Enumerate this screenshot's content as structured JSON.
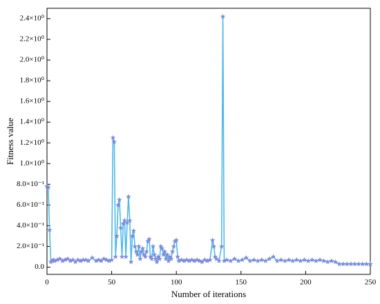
{
  "chart_data": {
    "type": "line",
    "xlabel": "Number of iterations",
    "ylabel": "Fitness value",
    "x": [
      0,
      1,
      2,
      3,
      4,
      5,
      6,
      8,
      10,
      12,
      14,
      16,
      18,
      20,
      22,
      24,
      26,
      28,
      30,
      32,
      35,
      38,
      40,
      42,
      44,
      46,
      48,
      50,
      51,
      52,
      53,
      54,
      55,
      56,
      57,
      58,
      59,
      60,
      61,
      62,
      63,
      64,
      65,
      66,
      67,
      68,
      69,
      70,
      71,
      72,
      73,
      74,
      75,
      76,
      77,
      78,
      79,
      80,
      81,
      82,
      83,
      84,
      85,
      86,
      87,
      88,
      89,
      90,
      91,
      92,
      93,
      94,
      95,
      96,
      97,
      98,
      99,
      100,
      101,
      102,
      104,
      106,
      108,
      110,
      112,
      114,
      116,
      118,
      120,
      122,
      124,
      126,
      128,
      129,
      130,
      131,
      133,
      135,
      136,
      137,
      139,
      142,
      145,
      148,
      151,
      154,
      157,
      160,
      163,
      166,
      169,
      172,
      175,
      178,
      181,
      184,
      187,
      190,
      193,
      196,
      199,
      202,
      205,
      208,
      211,
      214,
      217,
      220,
      223,
      226,
      229,
      232,
      235,
      238,
      241,
      244,
      247,
      250
    ],
    "series": [
      {
        "color": "#4fb8ea",
        "marker_color": "#7f8ad6",
        "values": [
          0.78,
          0.77,
          0.36,
          0.05,
          0.06,
          0.07,
          0.06,
          0.07,
          0.08,
          0.06,
          0.07,
          0.08,
          0.06,
          0.07,
          0.05,
          0.07,
          0.06,
          0.07,
          0.07,
          0.06,
          0.09,
          0.06,
          0.07,
          0.06,
          0.08,
          0.07,
          0.06,
          0.07,
          1.25,
          1.21,
          0.1,
          0.3,
          0.6,
          0.65,
          0.38,
          0.1,
          0.42,
          0.45,
          0.1,
          0.43,
          0.68,
          0.45,
          0.05,
          0.3,
          0.35,
          0.2,
          0.15,
          0.12,
          0.2,
          0.08,
          0.15,
          0.18,
          0.12,
          0.1,
          0.15,
          0.25,
          0.27,
          0.1,
          0.08,
          0.2,
          0.12,
          0.08,
          0.05,
          0.1,
          0.08,
          0.2,
          0.18,
          0.12,
          0.15,
          0.08,
          0.12,
          0.06,
          0.1,
          0.08,
          0.15,
          0.2,
          0.25,
          0.26,
          0.1,
          0.06,
          0.07,
          0.06,
          0.07,
          0.06,
          0.07,
          0.06,
          0.07,
          0.06,
          0.05,
          0.07,
          0.06,
          0.07,
          0.26,
          0.2,
          0.1,
          0.08,
          0.06,
          0.2,
          2.42,
          0.06,
          0.07,
          0.06,
          0.08,
          0.06,
          0.07,
          0.09,
          0.06,
          0.07,
          0.06,
          0.07,
          0.06,
          0.08,
          0.1,
          0.06,
          0.07,
          0.06,
          0.07,
          0.06,
          0.07,
          0.06,
          0.07,
          0.06,
          0.07,
          0.06,
          0.07,
          0.06,
          0.05,
          0.06,
          0.05,
          0.03,
          0.03,
          0.03,
          0.03,
          0.03,
          0.03,
          0.03,
          0.03,
          0.03
        ]
      }
    ],
    "xlim": [
      0,
      250
    ],
    "xticks": [
      0,
      50,
      100,
      150,
      200,
      250
    ],
    "ylim": [
      -0.07,
      2.5
    ],
    "yticks": [
      {
        "value": 0,
        "label": "0.0"
      },
      {
        "value": 0.2,
        "label": "2.0×10⁻¹"
      },
      {
        "value": 0.4,
        "label": "4.0×10⁻¹"
      },
      {
        "value": 0.6,
        "label": "6.0×10⁻¹"
      },
      {
        "value": 0.8,
        "label": "8.0×10⁻¹"
      },
      {
        "value": 1.0,
        "label": "1.0×10⁰"
      },
      {
        "value": 1.2,
        "label": "1.2×10⁰"
      },
      {
        "value": 1.4,
        "label": "1.4×10⁰"
      },
      {
        "value": 1.6,
        "label": "1.6×10⁰"
      },
      {
        "value": 1.8,
        "label": "1.8×10⁰"
      },
      {
        "value": 2.0,
        "label": "2.0×10⁰"
      },
      {
        "value": 2.2,
        "label": "2.2×10⁰"
      },
      {
        "value": 2.4,
        "label": "2.4×10⁰"
      }
    ],
    "grid": false
  }
}
